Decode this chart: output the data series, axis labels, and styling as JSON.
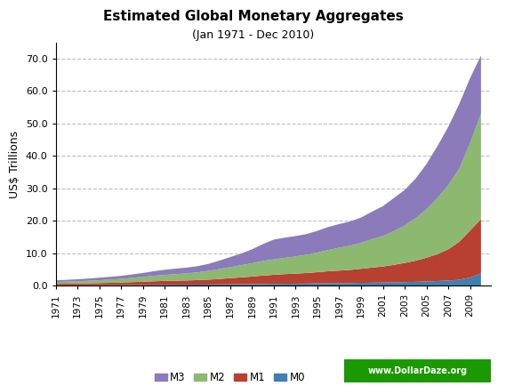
{
  "title": "Estimated Global Monetary Aggregates",
  "subtitle": "(Jan 1971 - Dec 2010)",
  "ylabel": "US$ Trillions",
  "watermark": "www.DollarDaze.org",
  "background_color": "#ffffff",
  "plot_bg_color": "#ffffff",
  "ylim": [
    0,
    75
  ],
  "yticks": [
    0.0,
    10.0,
    20.0,
    30.0,
    40.0,
    50.0,
    60.0,
    70.0
  ],
  "years": [
    1971,
    1972,
    1973,
    1974,
    1975,
    1976,
    1977,
    1978,
    1979,
    1980,
    1981,
    1982,
    1983,
    1984,
    1985,
    1986,
    1987,
    1988,
    1989,
    1990,
    1991,
    1992,
    1993,
    1994,
    1995,
    1996,
    1997,
    1998,
    1999,
    2000,
    2001,
    2002,
    2003,
    2004,
    2005,
    2006,
    2007,
    2008,
    2009,
    2010
  ],
  "M0": [
    0.09,
    0.1,
    0.11,
    0.12,
    0.14,
    0.15,
    0.17,
    0.19,
    0.22,
    0.25,
    0.27,
    0.29,
    0.3,
    0.32,
    0.34,
    0.37,
    0.4,
    0.43,
    0.47,
    0.52,
    0.55,
    0.58,
    0.61,
    0.64,
    0.68,
    0.73,
    0.77,
    0.81,
    0.86,
    0.91,
    0.96,
    1.02,
    1.09,
    1.17,
    1.28,
    1.41,
    1.57,
    1.8,
    2.5,
    3.8
  ],
  "M1": [
    0.55,
    0.6,
    0.65,
    0.72,
    0.78,
    0.86,
    0.96,
    1.08,
    1.2,
    1.35,
    1.45,
    1.52,
    1.6,
    1.7,
    1.85,
    2.05,
    2.3,
    2.55,
    2.8,
    3.1,
    3.35,
    3.55,
    3.7,
    3.9,
    4.15,
    4.45,
    4.65,
    4.85,
    5.2,
    5.55,
    5.9,
    6.4,
    7.0,
    7.7,
    8.6,
    9.7,
    11.2,
    13.5,
    17.0,
    20.5
  ],
  "M2": [
    1.1,
    1.22,
    1.35,
    1.5,
    1.68,
    1.88,
    2.1,
    2.4,
    2.7,
    3.05,
    3.3,
    3.55,
    3.78,
    4.1,
    4.55,
    5.1,
    5.7,
    6.3,
    6.9,
    7.6,
    8.1,
    8.55,
    9.0,
    9.55,
    10.2,
    11.0,
    11.7,
    12.3,
    13.2,
    14.3,
    15.3,
    16.8,
    18.5,
    20.8,
    23.5,
    27.0,
    31.0,
    36.0,
    44.0,
    53.0
  ],
  "M3": [
    1.6,
    1.78,
    1.97,
    2.18,
    2.44,
    2.72,
    3.02,
    3.45,
    3.9,
    4.45,
    4.9,
    5.25,
    5.55,
    6.0,
    6.7,
    7.7,
    8.8,
    9.9,
    11.2,
    12.8,
    14.2,
    14.8,
    15.3,
    15.9,
    16.9,
    18.1,
    19.0,
    19.8,
    21.0,
    22.8,
    24.5,
    27.0,
    29.5,
    33.0,
    37.5,
    43.0,
    49.0,
    56.0,
    64.0,
    71.0
  ],
  "colors": {
    "M3": "#8B7BBB",
    "M2": "#8DB870",
    "M1": "#B84030",
    "M0": "#4080B0"
  },
  "xtick_years": [
    1971,
    1973,
    1975,
    1977,
    1979,
    1981,
    1983,
    1985,
    1987,
    1989,
    1991,
    1993,
    1995,
    1997,
    1999,
    2001,
    2003,
    2005,
    2007,
    2009
  ],
  "grid_color": "#000000",
  "grid_alpha": 0.25,
  "grid_linestyle": "--"
}
